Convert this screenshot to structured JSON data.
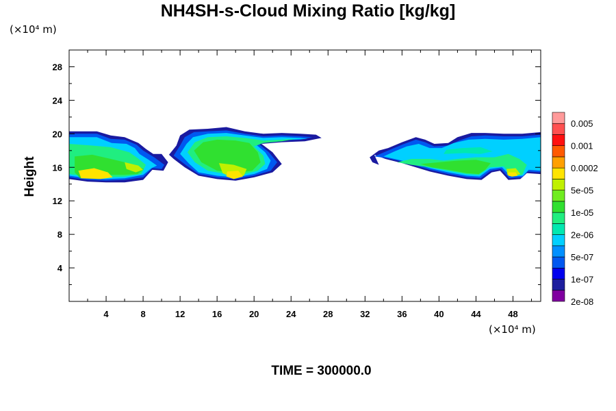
{
  "chart_data": {
    "type": "heatmap",
    "title": "NH4SH-s-Cloud Mixing Ratio [kg/kg]",
    "ylabel": "Height",
    "xlabel": "",
    "x_unit": "(×10⁴ m)",
    "y_unit": "(×10⁴ m)",
    "xlim": [
      0,
      51
    ],
    "ylim": [
      0,
      30
    ],
    "x_ticks": [
      "4",
      "8",
      "12",
      "16",
      "20",
      "24",
      "28",
      "32",
      "36",
      "40",
      "44",
      "48"
    ],
    "y_ticks": [
      "4",
      "8",
      "12",
      "16",
      "20",
      "24",
      "28"
    ],
    "x_tick_values": [
      4,
      8,
      12,
      16,
      20,
      24,
      28,
      32,
      36,
      40,
      44,
      48
    ],
    "y_tick_values": [
      4,
      8,
      12,
      16,
      20,
      24,
      28
    ],
    "colorbar": {
      "labels": [
        "0.005",
        "0.001",
        "0.0002",
        "5e-05",
        "1e-05",
        "2e-06",
        "5e-07",
        "1e-07",
        "2e-08"
      ],
      "colors": [
        "#8000a0",
        "#1e1e9e",
        "#0000ee",
        "#0058f0",
        "#0090ff",
        "#00d0ff",
        "#00e8b0",
        "#20ee80",
        "#30e030",
        "#70ec20",
        "#c0f000",
        "#ffe400",
        "#ffa000",
        "#ff5a00",
        "#ff1010",
        "#ff5050",
        "#ff9a9a"
      ]
    },
    "series": [
      {
        "x": [
          0,
          4,
          8,
          10.5,
          12,
          16,
          20,
          24,
          27.5,
          32.5,
          36,
          40,
          44,
          48,
          51
        ],
        "y": [
          16,
          17,
          17.5,
          16,
          18,
          18.5,
          18.5,
          19,
          19.5,
          17.5,
          18,
          17,
          17,
          17,
          17
        ]
      }
    ]
  },
  "time_label": "TIME = 300000.0"
}
